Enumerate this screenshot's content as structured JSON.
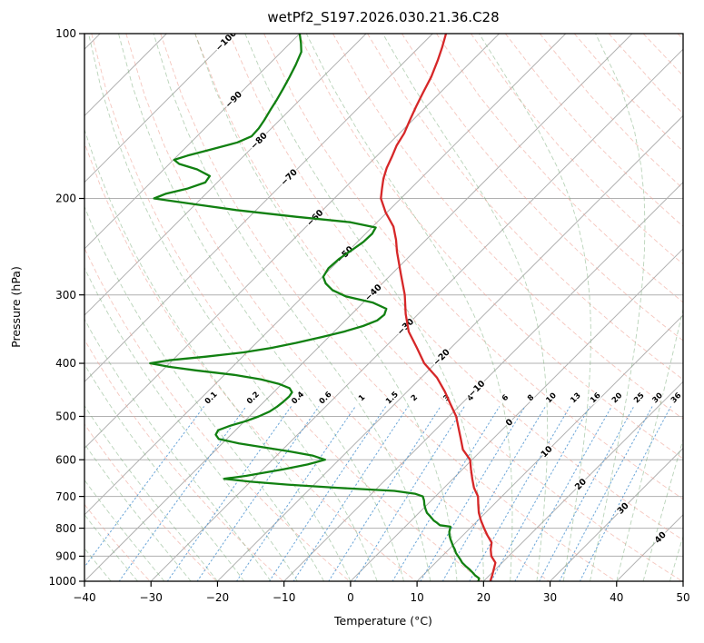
{
  "title": "wetPf2_S197.2026.030.21.36.C28",
  "axes": {
    "xlabel": "Temperature (°C)",
    "ylabel": "Pressure (hPa)",
    "x_ticks": [
      -40,
      -30,
      -20,
      -10,
      0,
      10,
      20,
      30,
      40,
      50
    ],
    "p_ticks": [
      100,
      200,
      300,
      400,
      500,
      600,
      700,
      800,
      900,
      1000
    ],
    "x_min": -40,
    "x_max": 50,
    "p_min": 100,
    "p_max": 1000,
    "skew_deg": 45
  },
  "chart_data": {
    "type": "line",
    "variant": "skew-t-log-p",
    "title": "wetPf2_S197.2026.030.21.36.C28",
    "xlabel": "Temperature (°C)",
    "ylabel": "Pressure (hPa)",
    "xlim": [
      -40,
      50
    ],
    "plim": [
      100,
      1000
    ],
    "isotherm_step_c": 10,
    "isotherm_labels": [
      {
        "v": -100,
        "p": 103
      },
      {
        "v": -90,
        "p": 132
      },
      {
        "v": -80,
        "p": 157
      },
      {
        "v": -70,
        "p": 183
      },
      {
        "v": -60,
        "p": 217
      },
      {
        "v": -50,
        "p": 253
      },
      {
        "v": -40,
        "p": 297
      },
      {
        "v": -30,
        "p": 343
      },
      {
        "v": -20,
        "p": 390
      },
      {
        "v": -10,
        "p": 445
      },
      {
        "v": 0,
        "p": 513
      },
      {
        "v": 10,
        "p": 580
      },
      {
        "v": 20,
        "p": 665
      },
      {
        "v": 30,
        "p": 736
      },
      {
        "v": 40,
        "p": 832
      }
    ],
    "mixing_ratios": [
      0.1,
      0.2,
      0.4,
      0.6,
      1,
      1.5,
      2,
      3,
      4,
      6,
      8,
      10,
      13,
      16,
      20,
      25,
      30,
      36
    ],
    "mixing_label_pressure_hpa": 462,
    "mixing_line_top_hpa": 480,
    "dry_adiabats": {
      "start_k": 233,
      "end_k": 463,
      "step_k": 10
    },
    "moist_adiabats": {
      "start_c": -56,
      "end_c": 48,
      "step_c": 4
    },
    "series": [
      {
        "name": "temperature",
        "color": "#d62728",
        "points": [
          [
            1000,
            21.0
          ],
          [
            975,
            20.4
          ],
          [
            950,
            19.7
          ],
          [
            925,
            19.0
          ],
          [
            900,
            17.4
          ],
          [
            875,
            16.3
          ],
          [
            850,
            15.4
          ],
          [
            825,
            13.7
          ],
          [
            800,
            12.1
          ],
          [
            775,
            10.5
          ],
          [
            750,
            9.0
          ],
          [
            725,
            7.7
          ],
          [
            700,
            6.4
          ],
          [
            675,
            4.5
          ],
          [
            650,
            2.9
          ],
          [
            625,
            1.3
          ],
          [
            600,
            -0.3
          ],
          [
            575,
            -2.9
          ],
          [
            550,
            -4.8
          ],
          [
            525,
            -6.8
          ],
          [
            500,
            -8.9
          ],
          [
            475,
            -11.6
          ],
          [
            450,
            -14.4
          ],
          [
            425,
            -17.6
          ],
          [
            400,
            -21.7
          ],
          [
            375,
            -25.1
          ],
          [
            350,
            -28.8
          ],
          [
            325,
            -31.9
          ],
          [
            300,
            -34.9
          ],
          [
            275,
            -38.6
          ],
          [
            250,
            -42.6
          ],
          [
            238,
            -44.5
          ],
          [
            225,
            -46.9
          ],
          [
            212,
            -50.2
          ],
          [
            200,
            -53.0
          ],
          [
            192,
            -54.3
          ],
          [
            184,
            -55.6
          ],
          [
            176,
            -56.7
          ],
          [
            168,
            -57.6
          ],
          [
            160,
            -58.6
          ],
          [
            152,
            -59.3
          ],
          [
            144,
            -60.4
          ],
          [
            136,
            -61.5
          ],
          [
            128,
            -62.6
          ],
          [
            120,
            -63.7
          ],
          [
            112,
            -65.2
          ],
          [
            106,
            -66.5
          ],
          [
            100,
            -68.0
          ]
        ]
      },
      {
        "name": "dewpoint",
        "color": "#118011",
        "points": [
          [
            1000,
            19.2
          ],
          [
            988,
            18.9
          ],
          [
            975,
            17.8
          ],
          [
            962,
            16.9
          ],
          [
            950,
            16.0
          ],
          [
            938,
            15.0
          ],
          [
            925,
            14.0
          ],
          [
            912,
            13.2
          ],
          [
            900,
            12.4
          ],
          [
            888,
            11.6
          ],
          [
            875,
            10.9
          ],
          [
            862,
            10.1
          ],
          [
            850,
            9.4
          ],
          [
            838,
            8.7
          ],
          [
            825,
            8.0
          ],
          [
            812,
            7.4
          ],
          [
            800,
            7.0
          ],
          [
            795,
            6.8
          ],
          [
            790,
            5.0
          ],
          [
            782,
            4.2
          ],
          [
            775,
            3.4
          ],
          [
            762,
            2.3
          ],
          [
            750,
            1.2
          ],
          [
            738,
            0.4
          ],
          [
            725,
            -0.4
          ],
          [
            712,
            -1.1
          ],
          [
            700,
            -1.9
          ],
          [
            692,
            -3.5
          ],
          [
            684,
            -7.0
          ],
          [
            675,
            -16.0
          ],
          [
            666,
            -24.0
          ],
          [
            658,
            -30.0
          ],
          [
            650,
            -34.4
          ],
          [
            642,
            -31.5
          ],
          [
            634,
            -29.5
          ],
          [
            625,
            -27.0
          ],
          [
            612,
            -24.0
          ],
          [
            600,
            -22.1
          ],
          [
            590,
            -24.5
          ],
          [
            580,
            -28.5
          ],
          [
            570,
            -33.0
          ],
          [
            560,
            -37.5
          ],
          [
            550,
            -41.2
          ],
          [
            540,
            -42.3
          ],
          [
            530,
            -42.6
          ],
          [
            520,
            -41.5
          ],
          [
            510,
            -39.8
          ],
          [
            500,
            -38.6
          ],
          [
            490,
            -37.7
          ],
          [
            480,
            -37.3
          ],
          [
            470,
            -37.1
          ],
          [
            460,
            -37.0
          ],
          [
            452,
            -37.2
          ],
          [
            444,
            -38.2
          ],
          [
            436,
            -40.5
          ],
          [
            428,
            -43.8
          ],
          [
            420,
            -48.5
          ],
          [
            412,
            -55.0
          ],
          [
            406,
            -59.5
          ],
          [
            400,
            -62.9
          ],
          [
            395,
            -60.5
          ],
          [
            389,
            -55.5
          ],
          [
            382,
            -50.5
          ],
          [
            375,
            -47.0
          ],
          [
            367,
            -44.0
          ],
          [
            358,
            -41.0
          ],
          [
            350,
            -38.5
          ],
          [
            342,
            -36.5
          ],
          [
            334,
            -35.2
          ],
          [
            326,
            -35.0
          ],
          [
            318,
            -35.6
          ],
          [
            310,
            -38.5
          ],
          [
            302,
            -43.5
          ],
          [
            294,
            -46.5
          ],
          [
            286,
            -48.5
          ],
          [
            278,
            -49.9
          ],
          [
            268,
            -50.4
          ],
          [
            258,
            -50.2
          ],
          [
            248,
            -49.6
          ],
          [
            240,
            -49.1
          ],
          [
            232,
            -49.0
          ],
          [
            226,
            -49.4
          ],
          [
            221,
            -54.0
          ],
          [
            216,
            -63.0
          ],
          [
            210,
            -73.0
          ],
          [
            205,
            -80.0
          ],
          [
            200,
            -87.1
          ],
          [
            196,
            -86.0
          ],
          [
            192,
            -83.6
          ],
          [
            187,
            -81.8
          ],
          [
            182,
            -82.1
          ],
          [
            177,
            -85.0
          ],
          [
            173,
            -88.5
          ],
          [
            170,
            -89.9
          ],
          [
            167,
            -88.5
          ],
          [
            163,
            -86.0
          ],
          [
            158,
            -83.0
          ],
          [
            154,
            -81.8
          ],
          [
            149,
            -81.9
          ],
          [
            144,
            -82.3
          ],
          [
            138,
            -82.9
          ],
          [
            132,
            -83.5
          ],
          [
            126,
            -84.2
          ],
          [
            120,
            -85.0
          ],
          [
            114,
            -85.9
          ],
          [
            108,
            -87.0
          ],
          [
            104,
            -88.4
          ],
          [
            100,
            -90.0
          ]
        ]
      }
    ],
    "colors": {
      "grid": "#b0b0b0",
      "dry_adiabat": "#efa093",
      "moist_adiabat": "#7fae7f",
      "mixing_line": "#5a9bd4",
      "mixing_label": "#1f77b4",
      "isotherm_label_neg": "#1f77b4",
      "isotherm_label_zero": "#808080",
      "isotherm_label_pos": "#d62728",
      "temperature": "#d62728",
      "dewpoint": "#118011",
      "axis": "#000000"
    }
  }
}
